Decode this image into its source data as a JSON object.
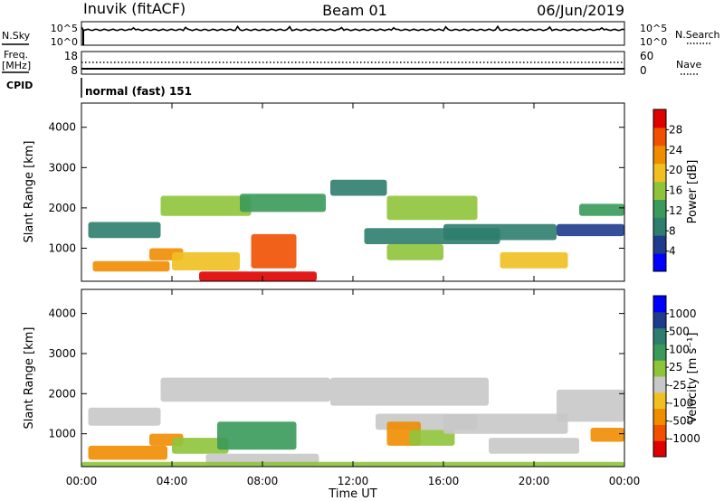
{
  "header": {
    "station": "Inuvik (fitACF)",
    "beam": "Beam 01",
    "date": "06/Jun/2019"
  },
  "noise_panel": {
    "left_label": "N.Sky",
    "right_label": "N.Search",
    "left_ticks": [
      "10^5",
      "10^0"
    ],
    "right_ticks": [
      "10^5",
      "10^0"
    ]
  },
  "freq_panel": {
    "left_label_top": "Freq.",
    "left_label_bottom": "[MHz]",
    "right_label": "Nave",
    "left_ticks": [
      "18",
      "8"
    ],
    "right_ticks": [
      "60",
      "0"
    ]
  },
  "cpid": {
    "label": "CPID",
    "value": "normal (fast) 151"
  },
  "colors": {
    "power": [
      "#0000ff",
      "#1e3c8c",
      "#2e7d6e",
      "#3a9a5a",
      "#8fc43a",
      "#f0c020",
      "#f08c00",
      "#f05000",
      "#e00000"
    ],
    "velocity": [
      "#e00000",
      "#f05000",
      "#f08c00",
      "#f0c020",
      "#c8c8c8",
      "#8fc43a",
      "#3a9a5a",
      "#2e7d6e",
      "#1e3c8c",
      "#0000ff"
    ]
  },
  "chart_data": [
    {
      "type": "heatmap",
      "quantity": "Power",
      "xlabel": "Time UT",
      "ylabel": "Slant Range [km]",
      "xlim": [
        "00:00",
        "00:00"
      ],
      "x_ticks": [
        "00:00",
        "04:00",
        "08:00",
        "12:00",
        "16:00",
        "20:00",
        "00:00"
      ],
      "ylim": [
        180,
        4600
      ],
      "y_ticks": [
        1000,
        2000,
        3000,
        4000
      ],
      "colorbar": {
        "label": "Power [dB]",
        "ticks": [
          4,
          8,
          12,
          16,
          20,
          24,
          28
        ]
      },
      "regions": [
        {
          "t0": 0.5,
          "t1": 3.9,
          "r0": 420,
          "r1": 680,
          "level": 6
        },
        {
          "t0": 0.3,
          "t1": 3.5,
          "r0": 1250,
          "r1": 1650,
          "level": 2
        },
        {
          "t0": 3.0,
          "t1": 4.5,
          "r0": 700,
          "r1": 1000,
          "level": 6
        },
        {
          "t0": 3.5,
          "t1": 7.5,
          "r0": 1800,
          "r1": 2300,
          "level": 4
        },
        {
          "t0": 4.0,
          "t1": 7.0,
          "r0": 450,
          "r1": 900,
          "level": 5
        },
        {
          "t0": 5.2,
          "t1": 10.4,
          "r0": 180,
          "r1": 420,
          "level": 8
        },
        {
          "t0": 7.5,
          "t1": 9.5,
          "r0": 500,
          "r1": 1350,
          "level": 7
        },
        {
          "t0": 7.0,
          "t1": 10.8,
          "r0": 1900,
          "r1": 2350,
          "level": 3
        },
        {
          "t0": 11.0,
          "t1": 13.5,
          "r0": 2300,
          "r1": 2700,
          "level": 2
        },
        {
          "t0": 13.5,
          "t1": 17.5,
          "r0": 1700,
          "r1": 2300,
          "level": 4
        },
        {
          "t0": 12.5,
          "t1": 18.5,
          "r0": 1100,
          "r1": 1500,
          "level": 2
        },
        {
          "t0": 13.5,
          "t1": 16.0,
          "r0": 700,
          "r1": 1100,
          "level": 4
        },
        {
          "t0": 16.0,
          "t1": 21.0,
          "r0": 1200,
          "r1": 1600,
          "level": 2
        },
        {
          "t0": 18.5,
          "t1": 21.5,
          "r0": 500,
          "r1": 900,
          "level": 5
        },
        {
          "t0": 21.0,
          "t1": 24.0,
          "r0": 1300,
          "r1": 1600,
          "level": 1
        },
        {
          "t0": 22.0,
          "t1": 24.0,
          "r0": 1800,
          "r1": 2100,
          "level": 3
        }
      ]
    },
    {
      "type": "heatmap",
      "quantity": "Velocity",
      "xlabel": "Time UT",
      "ylabel": "Slant Range [km]",
      "xlim": [
        "00:00",
        "00:00"
      ],
      "x_ticks": [
        "00:00",
        "04:00",
        "08:00",
        "12:00",
        "16:00",
        "20:00",
        "00:00"
      ],
      "ylim": [
        180,
        4600
      ],
      "y_ticks": [
        1000,
        2000,
        3000,
        4000
      ],
      "colorbar": {
        "label": "Velocity [m s⁻¹]",
        "ticks": [
          -1000,
          -500,
          -100,
          -25,
          25,
          100,
          500,
          1000
        ]
      },
      "regions": [
        {
          "t0": 0.3,
          "t1": 3.8,
          "r0": 350,
          "r1": 700,
          "level": 2
        },
        {
          "t0": 0.3,
          "t1": 3.5,
          "r0": 1200,
          "r1": 1650,
          "level": 4
        },
        {
          "t0": 3.0,
          "t1": 4.5,
          "r0": 700,
          "r1": 1000,
          "level": 2
        },
        {
          "t0": 3.5,
          "t1": 11.0,
          "r0": 1800,
          "r1": 2400,
          "level": 4
        },
        {
          "t0": 4.0,
          "t1": 6.5,
          "r0": 500,
          "r1": 900,
          "level": 5
        },
        {
          "t0": 6.0,
          "t1": 9.5,
          "r0": 600,
          "r1": 1300,
          "level": 6
        },
        {
          "t0": 5.5,
          "t1": 10.5,
          "r0": 200,
          "r1": 500,
          "level": 4
        },
        {
          "t0": 11.0,
          "t1": 18.0,
          "r0": 1700,
          "r1": 2400,
          "level": 4
        },
        {
          "t0": 13.0,
          "t1": 17.5,
          "r0": 1100,
          "r1": 1500,
          "level": 4
        },
        {
          "t0": 13.5,
          "t1": 15.0,
          "r0": 700,
          "r1": 1300,
          "level": 2
        },
        {
          "t0": 14.5,
          "t1": 16.5,
          "r0": 700,
          "r1": 1100,
          "level": 5
        },
        {
          "t0": 16.0,
          "t1": 21.5,
          "r0": 1000,
          "r1": 1500,
          "level": 4
        },
        {
          "t0": 18.0,
          "t1": 22.0,
          "r0": 500,
          "r1": 900,
          "level": 4
        },
        {
          "t0": 22.5,
          "t1": 24.0,
          "r0": 800,
          "r1": 1150,
          "level": 2
        },
        {
          "t0": 21.0,
          "t1": 24.0,
          "r0": 1300,
          "r1": 2100,
          "level": 4
        },
        {
          "t0": 0.0,
          "t1": 24.0,
          "r0": 180,
          "r1": 300,
          "level": 5
        }
      ]
    }
  ]
}
